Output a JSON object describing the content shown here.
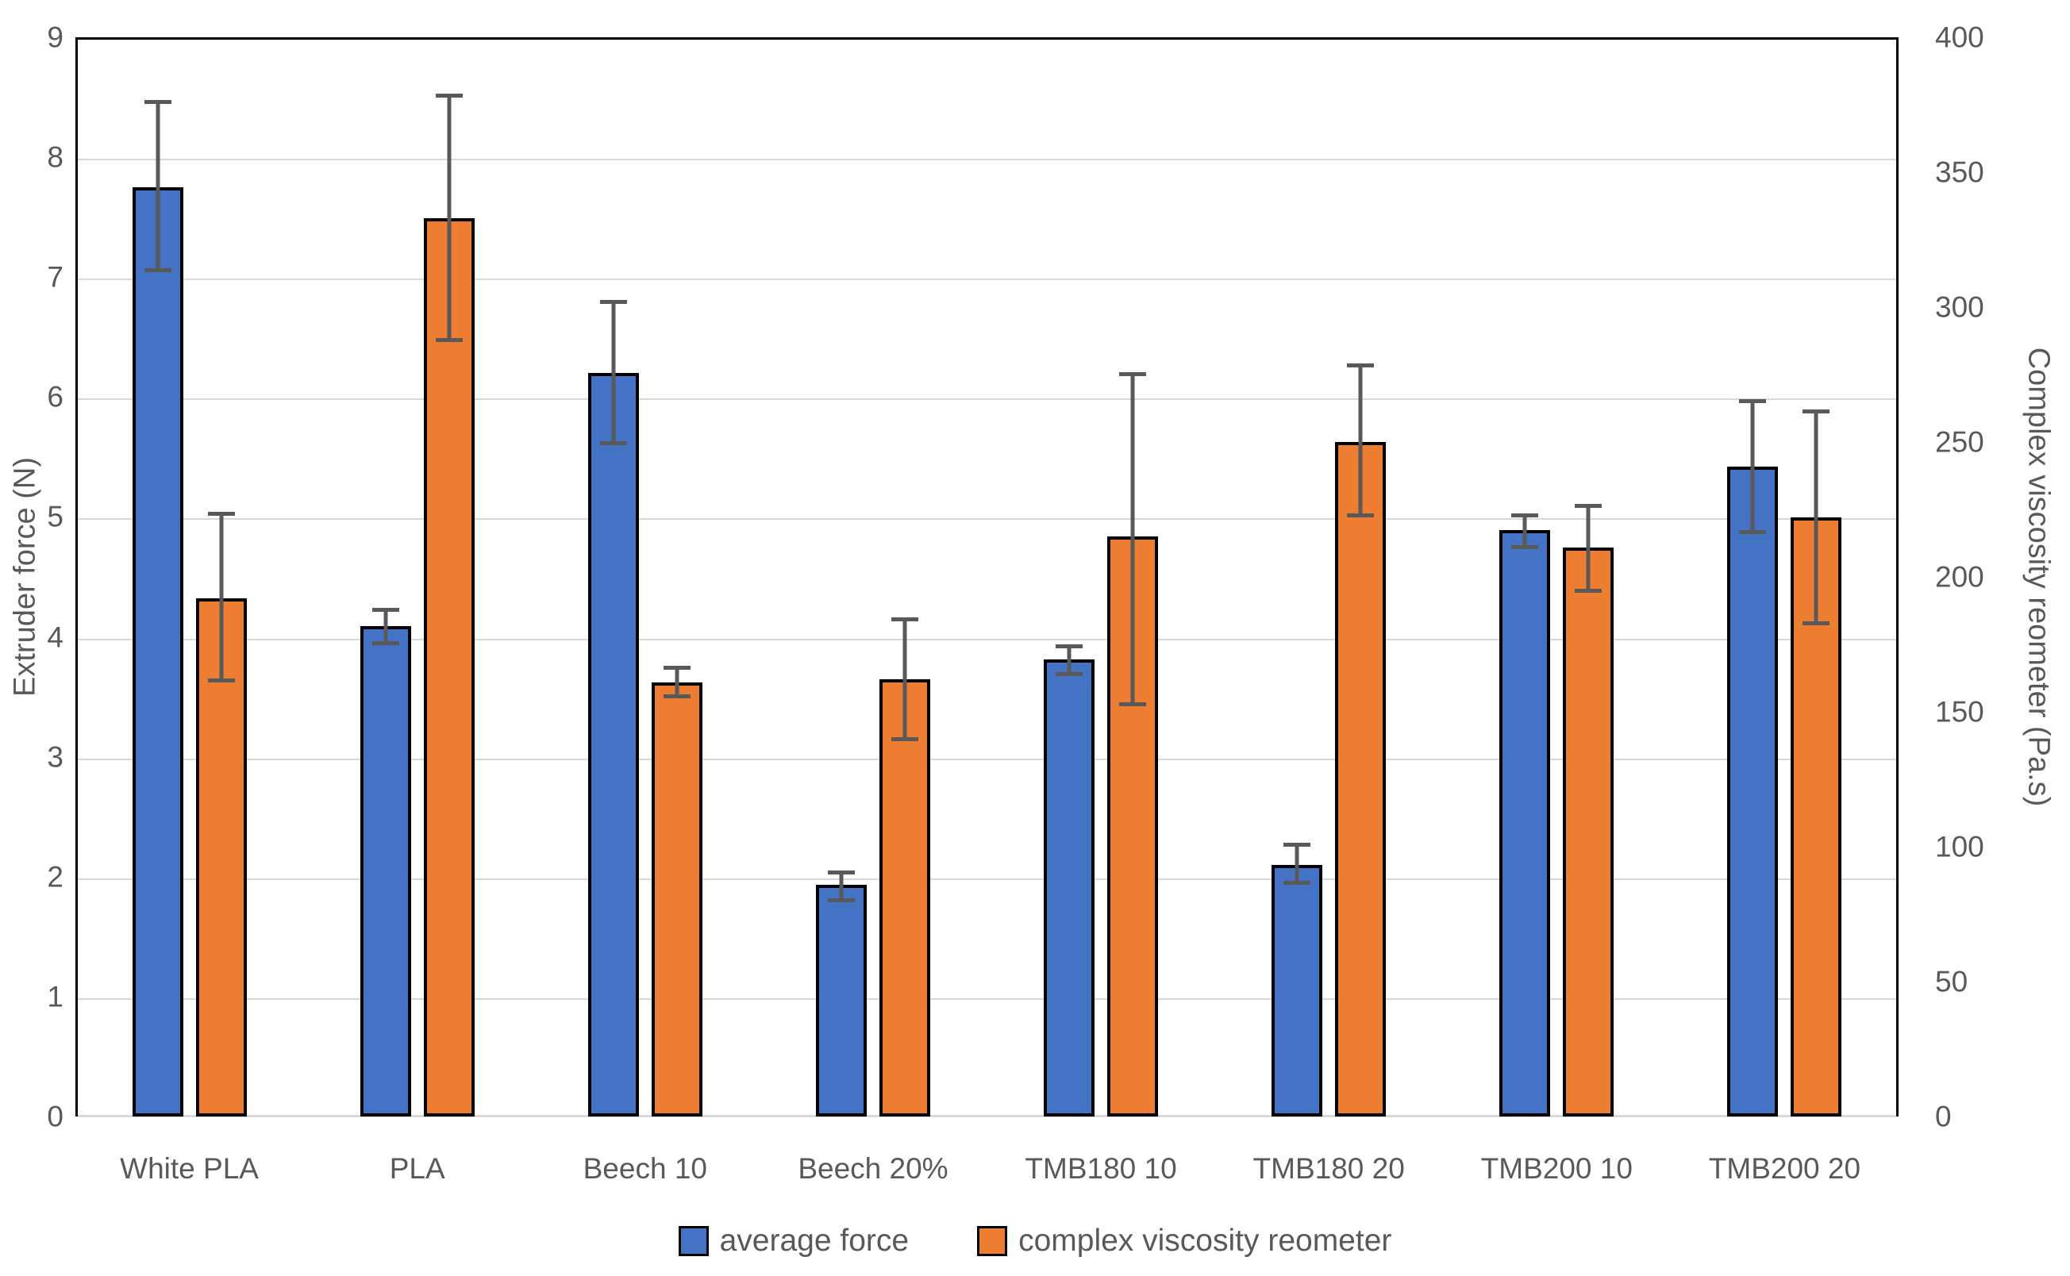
{
  "chart_data": {
    "type": "bar",
    "categories": [
      "White PLA",
      "PLA",
      "Beech 10",
      "Beech 20%",
      "TMB180 10",
      "TMB180 20",
      "TMB200 10",
      "TMB200 20"
    ],
    "series": [
      {
        "name": "average force",
        "axis": "left",
        "color": "#4472C4",
        "values": [
          7.75,
          4.09,
          6.2,
          1.93,
          3.81,
          2.1,
          4.89,
          5.42
        ],
        "error_low": [
          7.04,
          3.93,
          5.6,
          1.79,
          3.67,
          1.93,
          4.73,
          4.86
        ],
        "error_high": [
          8.48,
          4.24,
          6.81,
          2.05,
          3.94,
          2.28,
          5.03,
          5.98
        ]
      },
      {
        "name": "complex viscosity reometer",
        "axis": "right",
        "color": "#ED7D31",
        "values": [
          192,
          333,
          161,
          162,
          215,
          250,
          211,
          222
        ],
        "error_low": [
          161,
          287,
          155,
          139,
          152,
          222,
          194,
          182
        ],
        "error_high": [
          224,
          379,
          167,
          185,
          276,
          279,
          227,
          262
        ]
      }
    ],
    "left_axis": {
      "title": "Extruder force (N)",
      "min": 0,
      "max": 9,
      "step": 1
    },
    "right_axis": {
      "title": "Complex viscosity reometer (Pa.s)",
      "min": 0,
      "max": 400,
      "step": 50
    },
    "grid": true,
    "legend_position": "bottom"
  },
  "colors": {
    "bar_outline": "#000000",
    "error_bar": "#595959",
    "gridline": "#d9d9d9",
    "axis_text": "#595959"
  }
}
